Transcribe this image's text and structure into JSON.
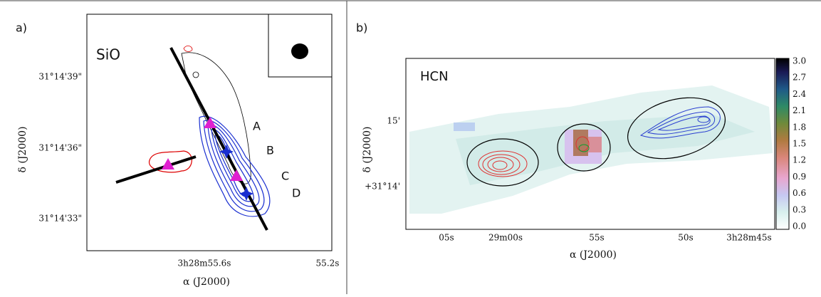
{
  "panels": [
    {
      "label": "a)",
      "line": "SiO",
      "yticks": [
        "31°14'39\"",
        "31°14'36\"",
        "31°14'33\""
      ],
      "xticks": [
        "3h28m55.6s",
        "55.2s"
      ],
      "ylabel": "δ (J2000)",
      "xlabel": "α (J2000)",
      "knots": [
        "A",
        "B",
        "C",
        "D"
      ]
    },
    {
      "label": "b)",
      "line": "HCN",
      "yticks": [
        "15'",
        "+31°14'"
      ],
      "xticks": [
        "05s",
        "29m00s",
        "55s",
        "50s",
        "3h28m45s"
      ],
      "ylabel": "δ (J2000)",
      "xlabel": "α (J2000)",
      "colorbar": [
        "3.0",
        "2.7",
        "2.4",
        "2.1",
        "1.8",
        "1.5",
        "1.2",
        "0.9",
        "0.6",
        "0.3",
        "0.0"
      ]
    }
  ]
}
